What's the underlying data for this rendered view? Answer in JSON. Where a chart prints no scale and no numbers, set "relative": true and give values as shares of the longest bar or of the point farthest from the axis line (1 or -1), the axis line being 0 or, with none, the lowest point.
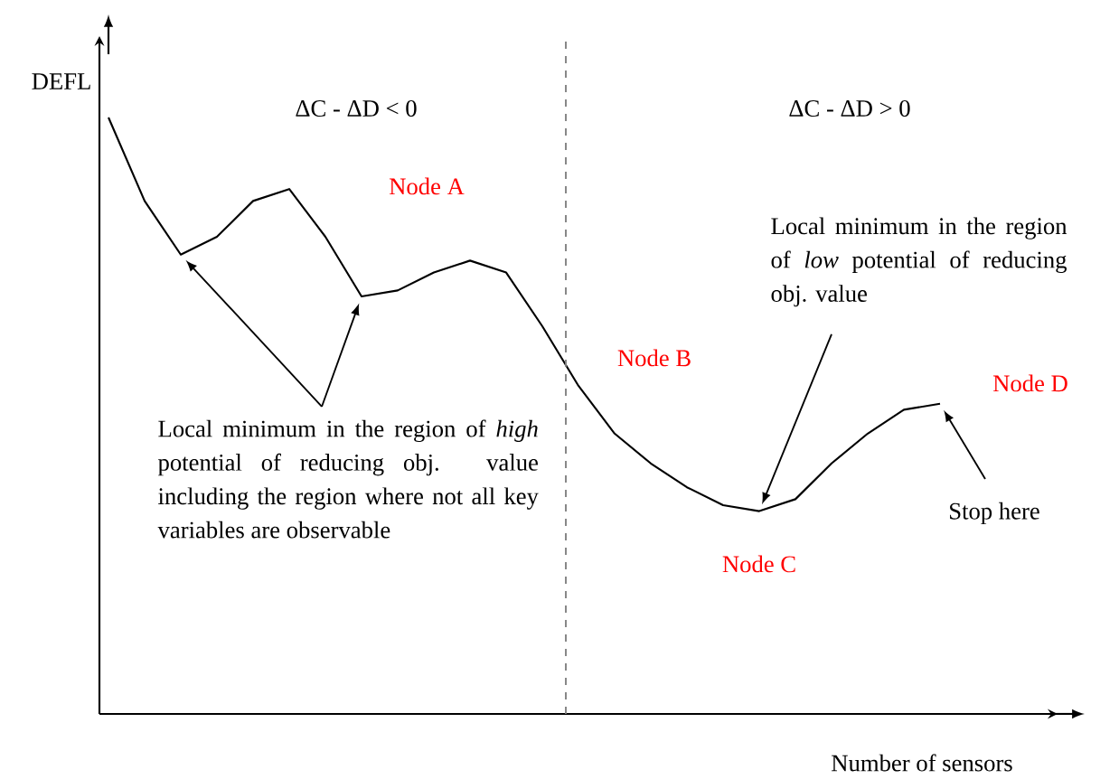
{
  "chart_data": {
    "type": "line",
    "relative": true,
    "xlabel": "Number of sensors",
    "ylabel": "DEFL",
    "categories": [
      null,
      null,
      null,
      null,
      null,
      null,
      null,
      null,
      null,
      null,
      null,
      null,
      null,
      null,
      null,
      null,
      null,
      null,
      null,
      null,
      null,
      null,
      null,
      null
    ],
    "values": [
      1.0,
      0.86,
      0.77,
      0.8,
      0.86,
      0.88,
      0.8,
      0.7,
      0.71,
      0.74,
      0.76,
      0.74,
      0.65,
      0.55,
      0.47,
      0.42,
      0.38,
      0.35,
      0.34,
      0.36,
      0.42,
      0.47,
      0.51,
      0.52
    ],
    "color": "#000000",
    "annotations": [
      "ΔC - ΔD < 0",
      "ΔC - ΔD > 0",
      "Node A",
      "Node B",
      "Node C",
      "Node D",
      "Local minimum in the region of *high* potential of reducing obj. value including the region where not all key variables are observable",
      "Local minimum in the region of *low* potential of reducing obj. value",
      "Stop here"
    ]
  }
}
